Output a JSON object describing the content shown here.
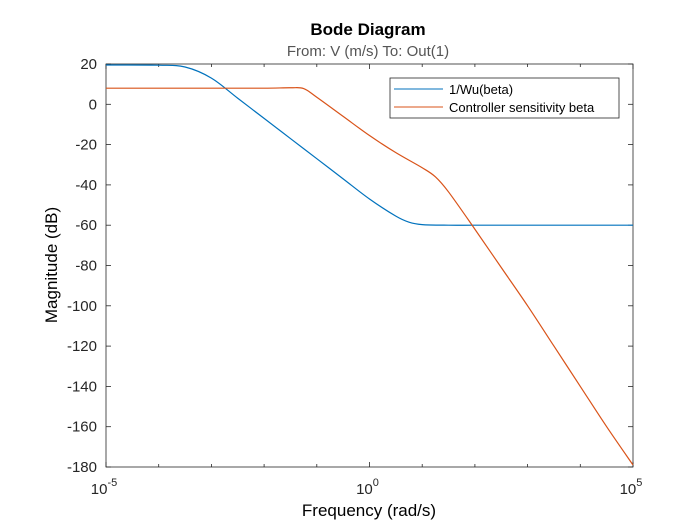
{
  "chart_data": {
    "type": "line",
    "title": "Bode Diagram",
    "subtitle": "From: V (m/s)  To: Out(1)",
    "xlabel": "Frequency  (rad/s)",
    "ylabel": "Magnitude (dB)",
    "xscale": "log",
    "xlim_exponent": [
      -5,
      5
    ],
    "ylim": [
      -180,
      20
    ],
    "x_ticks": [
      {
        "base": "10",
        "exp": "-5",
        "value": -5
      },
      {
        "base": "10",
        "exp": "0",
        "value": 0
      },
      {
        "base": "10",
        "exp": "5",
        "value": 5
      }
    ],
    "y_ticks": [
      "20",
      "0",
      "-20",
      "-40",
      "-60",
      "-80",
      "-100",
      "-120",
      "-140",
      "-160",
      "-180"
    ],
    "legend_position": "top-right",
    "series": [
      {
        "name": "1/Wu(beta)",
        "color": "#0072bd",
        "x_log10": [
          -5,
          -4,
          -3.5,
          -3,
          -2.5,
          -2,
          -1.5,
          -1,
          -0.5,
          0,
          0.5,
          0.75,
          1,
          1.5,
          2,
          3,
          4,
          5
        ],
        "y": [
          19.5,
          19.4,
          18.5,
          13,
          3,
          -7,
          -17,
          -27,
          -37,
          -47,
          -55.5,
          -58.5,
          -59.7,
          -60,
          -60,
          -60,
          -60,
          -60
        ]
      },
      {
        "name": "Controller sensitivity beta",
        "color": "#d95319",
        "x_log10": [
          -5,
          -4,
          -3,
          -2,
          -1.5,
          -1.25,
          -1,
          -0.5,
          0,
          0.5,
          1,
          1.25,
          1.5,
          2,
          2.5,
          3,
          3.5,
          4,
          4.5,
          5
        ],
        "y": [
          8,
          8,
          8,
          8,
          8.2,
          7.8,
          3.5,
          -6,
          -15.5,
          -24,
          -31.5,
          -36,
          -43.5,
          -62,
          -81,
          -100,
          -120,
          -140,
          -160,
          -179
        ]
      }
    ]
  }
}
